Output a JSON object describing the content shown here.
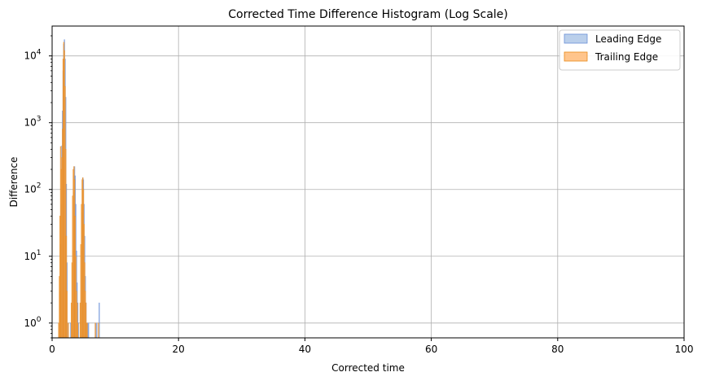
{
  "chart_data": {
    "type": "bar",
    "title": "Corrected Time Difference Histogram (Log Scale)",
    "xlabel": "Corrected time",
    "ylabel": "Difference",
    "xlim": [
      0,
      100
    ],
    "ylim": [
      0.6,
      28000
    ],
    "yscale": "log",
    "grid": true,
    "legend_position": "top-right",
    "x_ticks": [
      "0",
      "20",
      "40",
      "60",
      "80",
      "100"
    ],
    "x_tick_values": [
      0,
      20,
      40,
      60,
      80,
      100
    ],
    "y_ticks": [
      {
        "base": "10",
        "exp": "0",
        "value": 1
      },
      {
        "base": "10",
        "exp": "1",
        "value": 10
      },
      {
        "base": "10",
        "exp": "2",
        "value": 100
      },
      {
        "base": "10",
        "exp": "3",
        "value": 1000
      },
      {
        "base": "10",
        "exp": "4",
        "value": 10000
      }
    ],
    "bin_width": 0.1,
    "series": [
      {
        "name": "Leading Edge",
        "color": "#6a8fd8",
        "fill": "#aec7e8",
        "x": [
          1.1,
          1.2,
          1.3,
          1.4,
          1.5,
          1.6,
          1.7,
          1.8,
          1.9,
          2.0,
          2.1,
          2.2,
          2.3,
          2.5,
          2.9,
          3.2,
          3.3,
          3.4,
          3.5,
          3.6,
          3.7,
          3.8,
          3.9,
          4.0,
          4.1,
          4.5,
          4.6,
          4.7,
          4.8,
          4.9,
          5.0,
          5.1,
          5.2,
          5.3,
          5.4,
          5.5,
          5.6,
          5.7,
          6.8,
          7.0,
          7.4
        ],
        "values": [
          1,
          3,
          15,
          60,
          450,
          1500,
          6000,
          15000,
          17500,
          9000,
          2400,
          120,
          8,
          1,
          1,
          2,
          12,
          90,
          220,
          160,
          60,
          12,
          4,
          2,
          1,
          2,
          12,
          45,
          150,
          140,
          60,
          20,
          5,
          2,
          1,
          1,
          1,
          1,
          1,
          1,
          2
        ]
      },
      {
        "name": "Trailing Edge",
        "color": "#e8891a",
        "fill": "#ffbb78",
        "x": [
          1.0,
          1.1,
          1.2,
          1.3,
          1.4,
          1.5,
          1.6,
          1.7,
          1.8,
          1.9,
          2.0,
          2.1,
          2.2,
          2.3,
          2.5,
          3.0,
          3.1,
          3.2,
          3.3,
          3.4,
          3.5,
          3.6,
          3.7,
          3.8,
          3.9,
          4.0,
          4.4,
          4.5,
          4.6,
          4.7,
          4.8,
          4.9,
          5.0,
          5.1,
          5.2,
          5.3,
          5.4,
          5.5,
          6.8,
          7.3
        ],
        "values": [
          1,
          5,
          40,
          440,
          200,
          300,
          800,
          9000,
          16000,
          12000,
          3500,
          400,
          20,
          3,
          1,
          2,
          8,
          80,
          200,
          220,
          140,
          40,
          10,
          3,
          2,
          1,
          2,
          15,
          60,
          140,
          150,
          100,
          30,
          8,
          3,
          2,
          1,
          1,
          1,
          1
        ]
      }
    ]
  }
}
